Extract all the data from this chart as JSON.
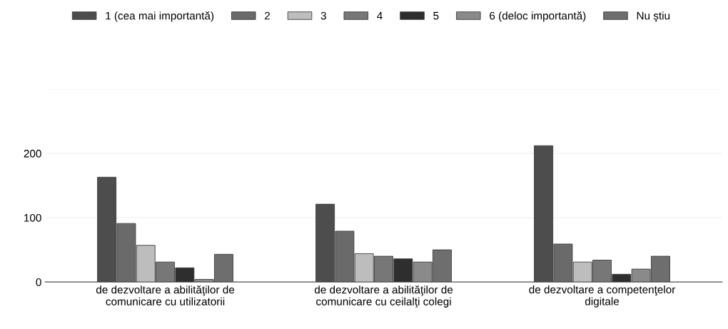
{
  "chart_data": {
    "type": "bar",
    "categories": [
      "de dezvoltare a abilităţilor de\ncomunicare cu utilizatorii",
      "de dezvoltare a abilităţilor de\ncomunicare cu ceilalţi colegi",
      "de dezvoltare a competenţelor\ndigitale"
    ],
    "series": [
      {
        "name": "1 (cea mai importantă)",
        "color": "#4d4d4d",
        "values": [
          163,
          121,
          212
        ]
      },
      {
        "name": "2",
        "color": "#6a6a6a",
        "values": [
          91,
          79,
          59
        ]
      },
      {
        "name": "3",
        "color": "#bdbdbd",
        "values": [
          57,
          44,
          31
        ]
      },
      {
        "name": "4",
        "color": "#777777",
        "values": [
          31,
          40,
          34
        ]
      },
      {
        "name": "5",
        "color": "#2e2e2e",
        "values": [
          22,
          36,
          12
        ]
      },
      {
        "name": "6 (deloc importantă)",
        "color": "#8a8a8a",
        "values": [
          4,
          31,
          20
        ]
      },
      {
        "name": "Nu ştiu",
        "color": "#6e6e6e",
        "values": [
          43,
          50,
          40
        ]
      }
    ],
    "ylim": [
      0,
      300
    ],
    "yticks": [
      0,
      100,
      200,
      {
        "value": 300,
        "label": null
      }
    ],
    "grid": "y",
    "legend": "top"
  }
}
